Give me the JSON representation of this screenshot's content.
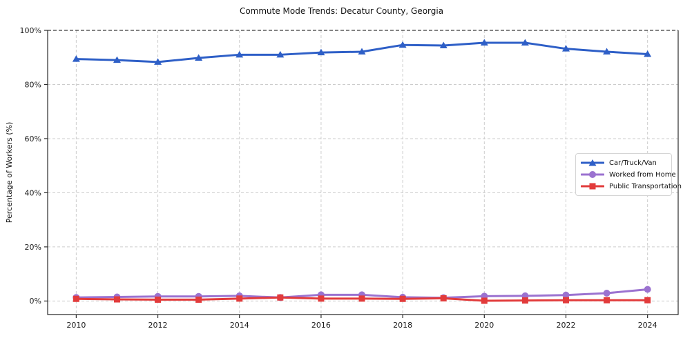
{
  "chart_data": {
    "type": "line",
    "title": "Commute Mode Trends: Decatur County, Georgia",
    "xlabel": "",
    "ylabel": "Percentage of Workers (%)",
    "x": [
      2010,
      2011,
      2012,
      2013,
      2014,
      2015,
      2016,
      2017,
      2018,
      2019,
      2020,
      2021,
      2022,
      2023,
      2024
    ],
    "series": [
      {
        "name": "Car/Truck/Van",
        "marker": "triangle",
        "color": "#2e5fc7",
        "values": [
          89.4,
          89.0,
          88.3,
          89.8,
          91.0,
          91.0,
          91.8,
          92.1,
          94.6,
          94.4,
          95.4,
          95.4,
          93.2,
          92.1,
          91.2
        ]
      },
      {
        "name": "Worked from Home",
        "marker": "circle",
        "color": "#9b72d0",
        "values": [
          1.3,
          1.5,
          1.7,
          1.7,
          1.9,
          1.3,
          2.3,
          2.3,
          1.4,
          1.2,
          1.8,
          1.9,
          2.2,
          2.9,
          4.3
        ]
      },
      {
        "name": "Public Transportation",
        "marker": "square",
        "color": "#e23b3b",
        "values": [
          0.8,
          0.6,
          0.5,
          0.5,
          0.9,
          1.3,
          0.9,
          0.9,
          0.8,
          1.0,
          0.1,
          0.2,
          0.3,
          0.3,
          0.3
        ]
      }
    ],
    "xlim": [
      2009.3,
      2024.75
    ],
    "ylim": [
      -5,
      100
    ],
    "xticks": {
      "values": [
        2010,
        2012,
        2014,
        2016,
        2018,
        2020,
        2022,
        2024
      ],
      "labels": [
        "2010",
        "2012",
        "2014",
        "2016",
        "2018",
        "2020",
        "2022",
        "2024"
      ]
    },
    "yticks": {
      "values": [
        0,
        20,
        40,
        60,
        80,
        100
      ],
      "labels": [
        "0%",
        "20%",
        "40%",
        "60%",
        "80%",
        "100%"
      ]
    },
    "grid": true,
    "legend_position": "center-right",
    "colors": {
      "grid": "#cccccc",
      "spine": "#2b2b2b",
      "top_dashed_line": "#3a3a3a",
      "tick_text": "#1a1a1a"
    }
  }
}
